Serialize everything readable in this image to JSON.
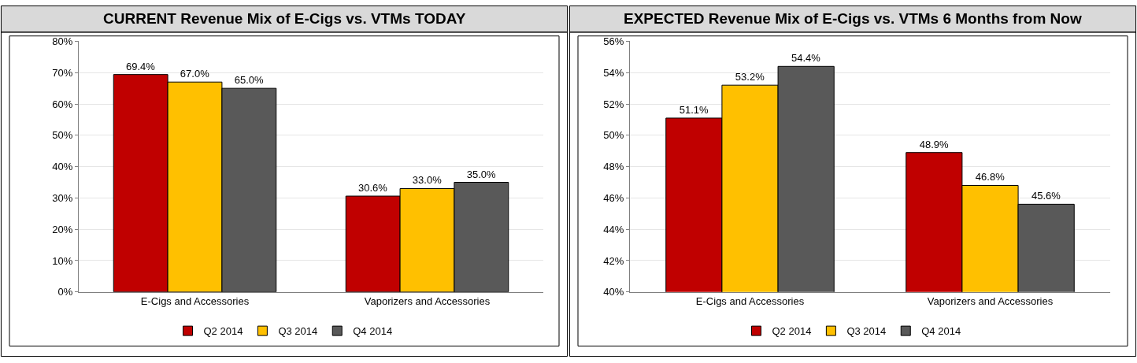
{
  "chart_data": [
    {
      "type": "bar",
      "title": "CURRENT Revenue Mix of E-Cigs vs. VTMs TODAY",
      "categories": [
        "E-Cigs and Accessories",
        "Vaporizers and Accessories"
      ],
      "series": [
        {
          "name": "Q2 2014",
          "color": "#c00000",
          "values": [
            69.4,
            30.6
          ],
          "value_labels": [
            "69.4%",
            "30.6%"
          ]
        },
        {
          "name": "Q3 2014",
          "color": "#ffc000",
          "values": [
            67.0,
            33.0
          ],
          "value_labels": [
            "67.0%",
            "33.0%"
          ]
        },
        {
          "name": "Q4 2014",
          "color": "#595959",
          "values": [
            65.0,
            35.0
          ],
          "value_labels": [
            "65.0%",
            "35.0%"
          ]
        }
      ],
      "ylim": [
        0,
        80
      ],
      "yticks": [
        {
          "value": 0,
          "label": "0%"
        },
        {
          "value": 10,
          "label": "10%"
        },
        {
          "value": 20,
          "label": "20%"
        },
        {
          "value": 30,
          "label": "30%"
        },
        {
          "value": 40,
          "label": "40%"
        },
        {
          "value": 50,
          "label": "50%"
        },
        {
          "value": 60,
          "label": "60%"
        },
        {
          "value": 70,
          "label": "70%"
        },
        {
          "value": 80,
          "label": "80%"
        }
      ],
      "grid": "y",
      "legend": "bottom"
    },
    {
      "type": "bar",
      "title": "EXPECTED Revenue Mix of E-Cigs vs. VTMs 6 Months from Now",
      "categories": [
        "E-Cigs and Accessories",
        "Vaporizers and Accessories"
      ],
      "series": [
        {
          "name": "Q2 2014",
          "color": "#c00000",
          "values": [
            51.1,
            48.9
          ],
          "value_labels": [
            "51.1%",
            "48.9%"
          ]
        },
        {
          "name": "Q3 2014",
          "color": "#ffc000",
          "values": [
            53.2,
            46.8
          ],
          "value_labels": [
            "53.2%",
            "46.8%"
          ]
        },
        {
          "name": "Q4 2014",
          "color": "#595959",
          "values": [
            54.4,
            45.6
          ],
          "value_labels": [
            "54.4%",
            "45.6%"
          ]
        }
      ],
      "ylim": [
        40,
        56
      ],
      "yticks": [
        {
          "value": 40,
          "label": "40%"
        },
        {
          "value": 42,
          "label": "42%"
        },
        {
          "value": 44,
          "label": "44%"
        },
        {
          "value": 46,
          "label": "46%"
        },
        {
          "value": 48,
          "label": "48%"
        },
        {
          "value": 50,
          "label": "50%"
        },
        {
          "value": 52,
          "label": "52%"
        },
        {
          "value": 54,
          "label": "54%"
        },
        {
          "value": 56,
          "label": "56%"
        }
      ],
      "grid": "y",
      "legend": "bottom"
    }
  ]
}
